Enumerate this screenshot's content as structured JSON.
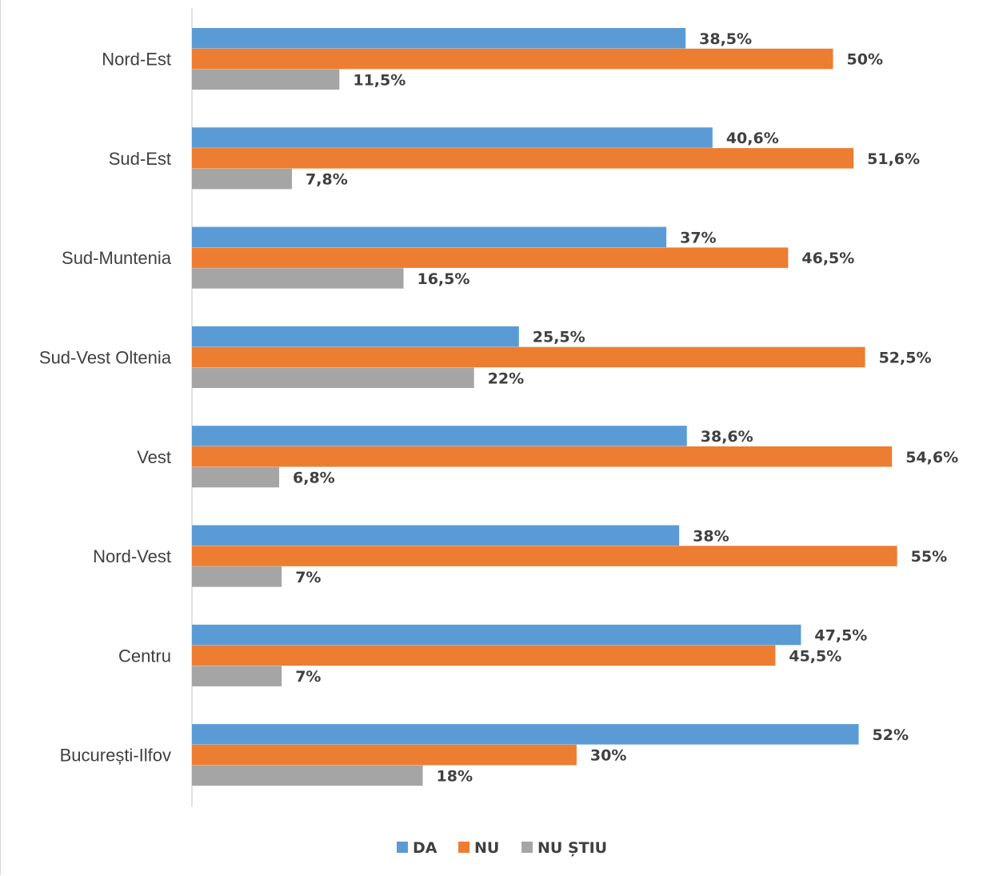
{
  "chart_data": {
    "type": "bar",
    "orientation": "horizontal",
    "categories": [
      "Nord-Est",
      "Sud-Est",
      "Sud-Muntenia",
      "Sud-Vest Oltenia",
      "Vest",
      "Nord-Vest",
      "Centru",
      "București-Ilfov"
    ],
    "series": [
      {
        "name": "DA",
        "color": "#5b9bd5",
        "values": [
          38.5,
          40.6,
          37,
          25.5,
          38.6,
          38,
          47.5,
          52
        ],
        "labels": [
          "38,5%",
          "40,6%",
          "37%",
          "25,5%",
          "38,6%",
          "38%",
          "47,5%",
          "52%"
        ]
      },
      {
        "name": "NU",
        "color": "#ed7d31",
        "values": [
          50,
          51.6,
          46.5,
          52.5,
          54.6,
          55,
          45.5,
          30
        ],
        "labels": [
          "50%",
          "51,6%",
          "46,5%",
          "52,5%",
          "54,6%",
          "55%",
          "45,5%",
          "30%"
        ]
      },
      {
        "name": "NU ȘTIU",
        "color": "#a5a5a5",
        "values": [
          11.5,
          7.8,
          16.5,
          22,
          6.8,
          7,
          7,
          18
        ],
        "labels": [
          "11,5%",
          "7,8%",
          "16,5%",
          "22%",
          "6,8%",
          "7%",
          "7%",
          "18%"
        ]
      }
    ],
    "xlim": [
      0,
      60
    ],
    "legend": "bottom",
    "grid": false
  }
}
